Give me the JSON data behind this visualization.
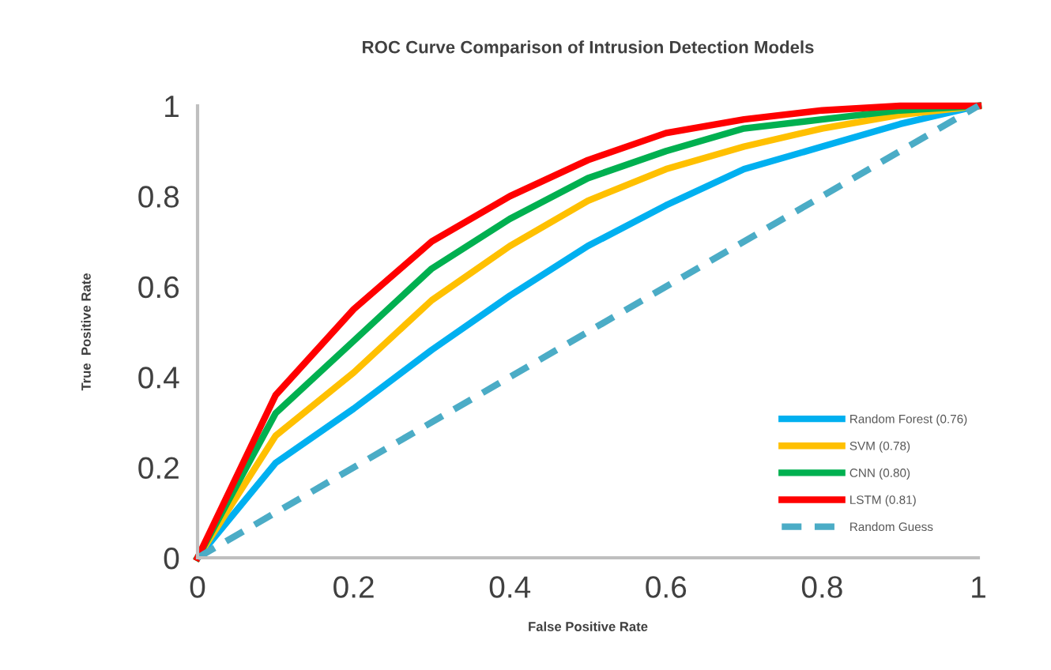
{
  "chart_data": {
    "type": "line",
    "title": "ROC Curve Comparison of Intrusion Detection Models",
    "xlabel": "False Positive Rate",
    "ylabel": "True  Positive Rate",
    "x": [
      0,
      0.1,
      0.2,
      0.3,
      0.4,
      0.5,
      0.6,
      0.7,
      0.8,
      0.9,
      1
    ],
    "series": [
      {
        "name": "Random Forest (0.76)",
        "color": "#00b0f0",
        "values": [
          0,
          0.21,
          0.33,
          0.46,
          0.58,
          0.69,
          0.78,
          0.86,
          0.91,
          0.96,
          1
        ]
      },
      {
        "name": "SVM (0.78)",
        "color": "#ffc000",
        "values": [
          0,
          0.27,
          0.41,
          0.57,
          0.69,
          0.79,
          0.86,
          0.91,
          0.95,
          0.98,
          1
        ]
      },
      {
        "name": "CNN (0.80)",
        "color": "#00b050",
        "values": [
          0,
          0.32,
          0.48,
          0.64,
          0.75,
          0.84,
          0.9,
          0.95,
          0.97,
          0.99,
          1
        ]
      },
      {
        "name": "LSTM (0.81)",
        "color": "#ff0000",
        "values": [
          0,
          0.36,
          0.55,
          0.7,
          0.8,
          0.88,
          0.94,
          0.97,
          0.99,
          1,
          1
        ]
      },
      {
        "name": "Random Guess",
        "color": "#4bacc6",
        "x": [
          0,
          1
        ],
        "values": [
          0,
          1
        ],
        "line_style": "dashed"
      }
    ],
    "xlim": [
      0,
      1
    ],
    "ylim": [
      0,
      1
    ],
    "xticks": [
      0,
      0.2,
      0.4,
      0.6,
      0.8,
      1
    ],
    "yticks": [
      0,
      0.2,
      0.4,
      0.6,
      0.8,
      1
    ],
    "grid": false,
    "legend": "bottom right",
    "marker": "none"
  }
}
